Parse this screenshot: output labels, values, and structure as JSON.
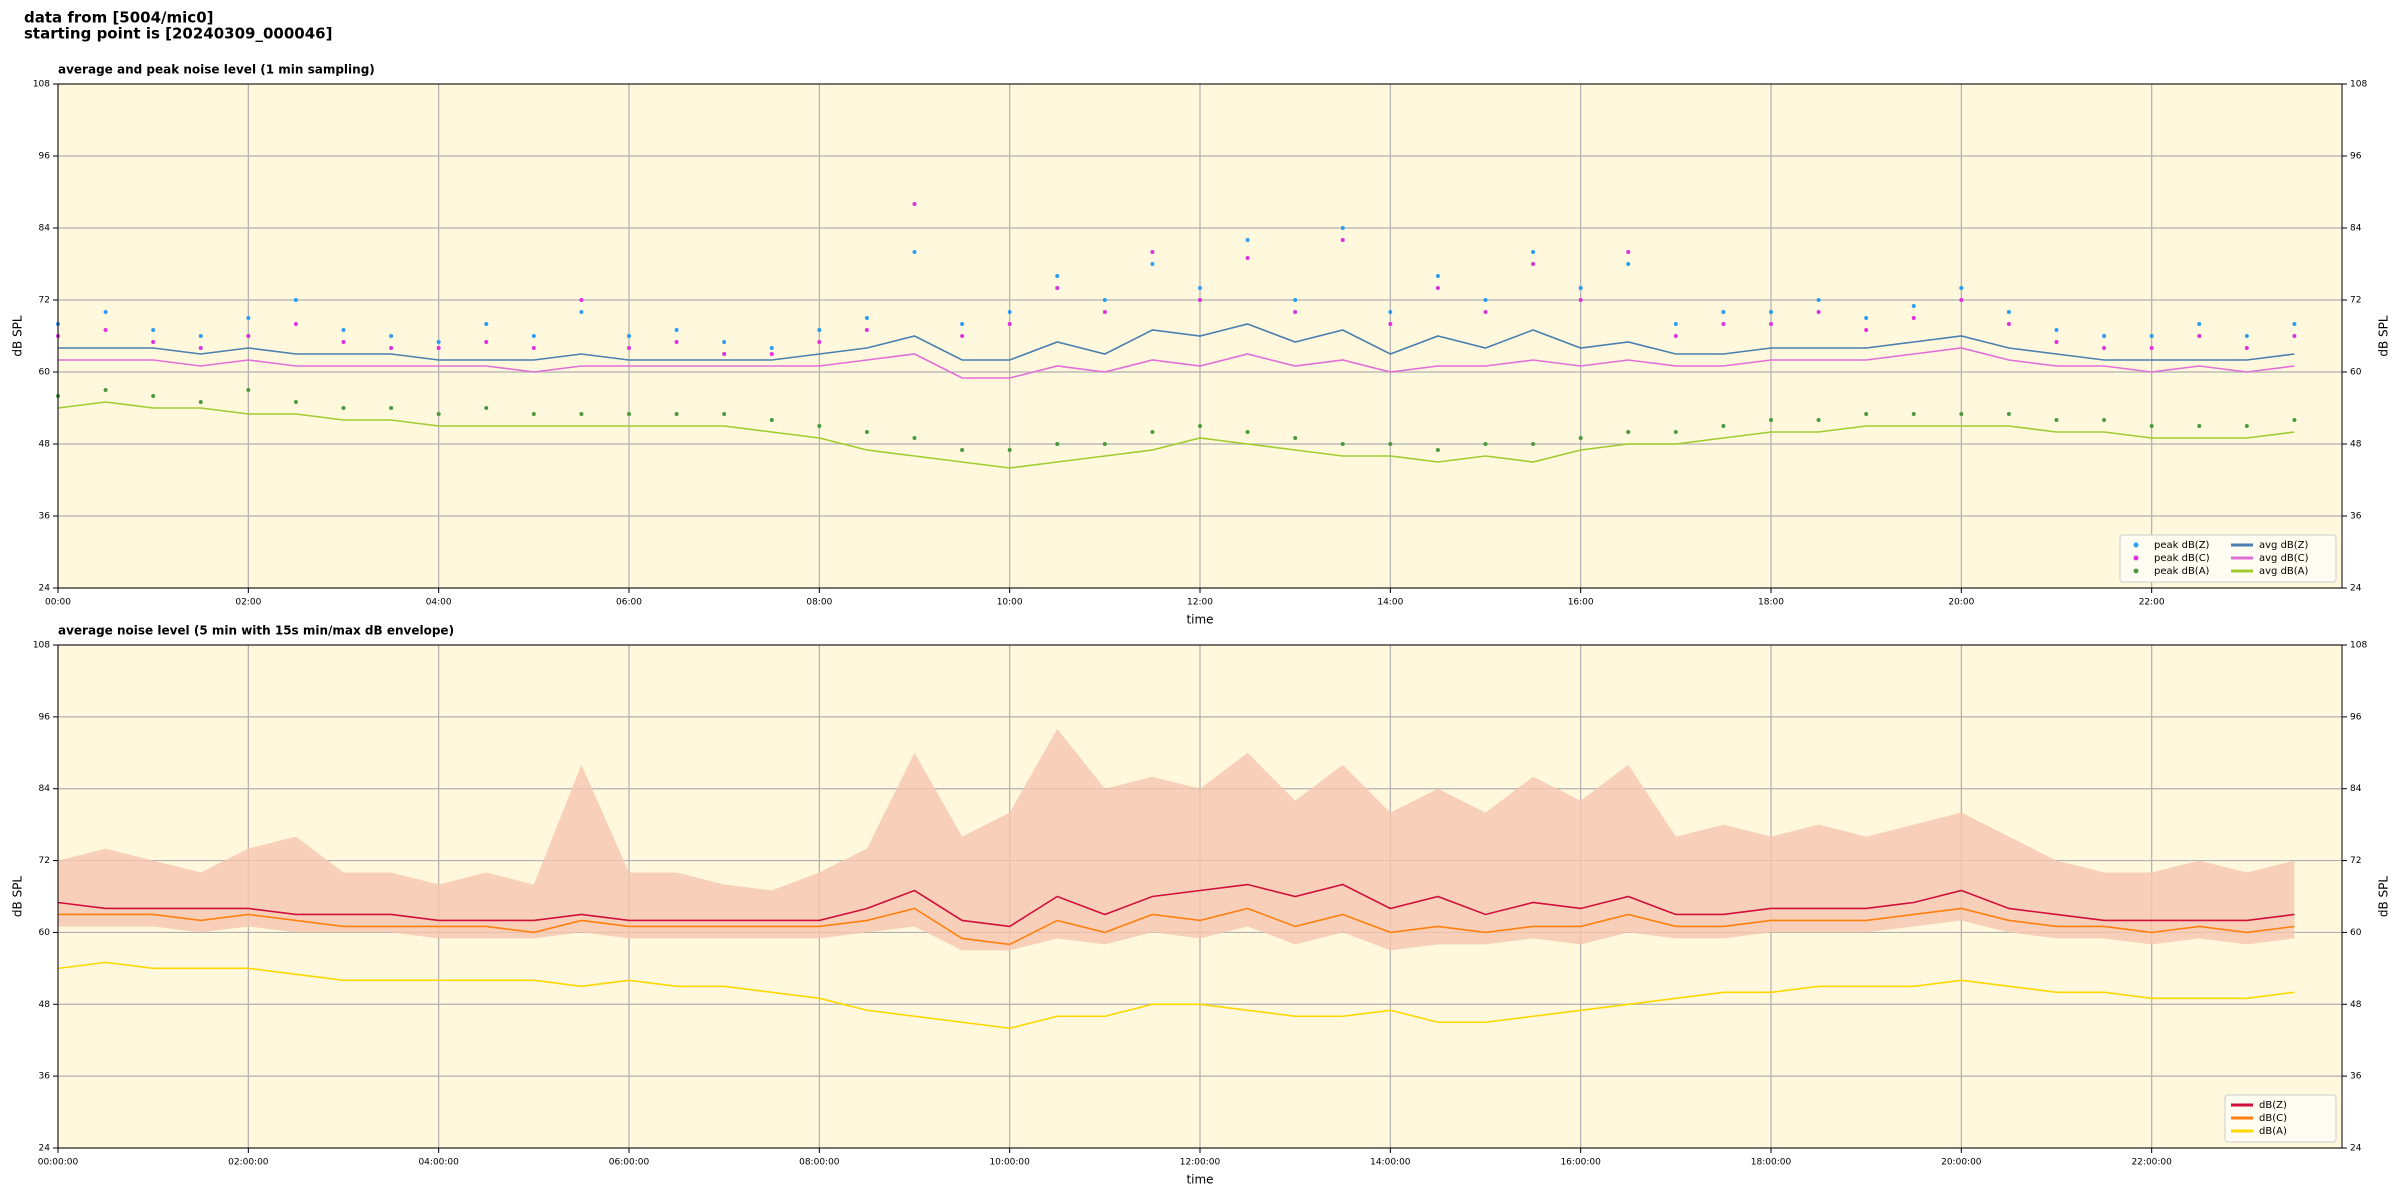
{
  "header": {
    "line1": "data from [5004/mic0]",
    "line2": "starting point is [20240309_000046]"
  },
  "chart_data": [
    {
      "type": "line",
      "title": "average and peak noise level (1 min sampling)",
      "x_label": "time",
      "y_label": "dB SPL",
      "x": [
        0,
        0.5,
        1,
        1.5,
        2,
        2.5,
        3,
        3.5,
        4,
        4.5,
        5,
        5.5,
        6,
        6.5,
        7,
        7.5,
        8,
        8.5,
        9,
        9.5,
        10,
        10.5,
        11,
        11.5,
        12,
        12.5,
        13,
        13.5,
        14,
        14.5,
        15,
        15.5,
        16,
        16.5,
        17,
        17.5,
        18,
        18.5,
        19,
        19.5,
        20,
        20.5,
        21,
        21.5,
        22,
        22.5,
        23,
        23.5
      ],
      "xlim": [
        0,
        24
      ],
      "xticks": [
        {
          "value": 0,
          "label": "00:00"
        },
        {
          "value": 2,
          "label": "02:00"
        },
        {
          "value": 4,
          "label": "04:00"
        },
        {
          "value": 6,
          "label": "06:00"
        },
        {
          "value": 8,
          "label": "08:00"
        },
        {
          "value": 10,
          "label": "10:00"
        },
        {
          "value": 12,
          "label": "12:00"
        },
        {
          "value": 14,
          "label": "14:00"
        },
        {
          "value": 16,
          "label": "16:00"
        },
        {
          "value": 18,
          "label": "18:00"
        },
        {
          "value": 20,
          "label": "20:00"
        },
        {
          "value": 22,
          "label": "22:00"
        }
      ],
      "ylim": [
        24,
        108
      ],
      "yticks": [
        24,
        36,
        48,
        60,
        72,
        84,
        96,
        108
      ],
      "grid": true,
      "legend": "lower right",
      "background": "#fff8dc",
      "series": [
        {
          "name": "peak dB(Z)",
          "mark": "scatter",
          "color": "#2a9df4",
          "values": [
            68,
            70,
            67,
            66,
            69,
            72,
            67,
            66,
            65,
            68,
            66,
            70,
            66,
            67,
            65,
            64,
            67,
            69,
            80,
            68,
            70,
            76,
            72,
            78,
            74,
            82,
            72,
            84,
            70,
            76,
            72,
            80,
            74,
            78,
            68,
            70,
            70,
            72,
            69,
            71,
            74,
            70,
            67,
            66,
            66,
            68,
            66,
            68
          ]
        },
        {
          "name": "peak dB(C)",
          "mark": "scatter",
          "color": "#e030e0",
          "values": [
            66,
            67,
            65,
            64,
            66,
            68,
            65,
            64,
            64,
            65,
            64,
            72,
            64,
            65,
            63,
            63,
            65,
            67,
            88,
            66,
            68,
            74,
            70,
            80,
            72,
            79,
            70,
            82,
            68,
            74,
            70,
            78,
            72,
            80,
            66,
            68,
            68,
            70,
            67,
            69,
            72,
            68,
            65,
            64,
            64,
            66,
            64,
            66
          ]
        },
        {
          "name": "peak dB(A)",
          "mark": "scatter",
          "color": "#4a9a40",
          "values": [
            56,
            57,
            56,
            55,
            57,
            55,
            54,
            54,
            53,
            54,
            53,
            53,
            53,
            53,
            53,
            52,
            51,
            50,
            49,
            47,
            47,
            48,
            48,
            50,
            51,
            50,
            49,
            48,
            48,
            47,
            48,
            48,
            49,
            50,
            50,
            51,
            52,
            52,
            53,
            53,
            53,
            53,
            52,
            52,
            51,
            51,
            51,
            52
          ]
        },
        {
          "name": "avg dB(Z)",
          "mark": "line",
          "color": "#4a7fb0",
          "values": [
            64,
            64,
            64,
            63,
            64,
            63,
            63,
            63,
            62,
            62,
            62,
            63,
            62,
            62,
            62,
            62,
            63,
            64,
            66,
            62,
            62,
            65,
            63,
            67,
            66,
            68,
            65,
            67,
            63,
            66,
            64,
            67,
            64,
            65,
            63,
            63,
            64,
            64,
            64,
            65,
            66,
            64,
            63,
            62,
            62,
            62,
            62,
            63
          ]
        },
        {
          "name": "avg dB(C)",
          "mark": "line",
          "color": "#e070d8",
          "values": [
            62,
            62,
            62,
            61,
            62,
            61,
            61,
            61,
            61,
            61,
            60,
            61,
            61,
            61,
            61,
            61,
            61,
            62,
            63,
            59,
            59,
            61,
            60,
            62,
            61,
            63,
            61,
            62,
            60,
            61,
            61,
            62,
            61,
            62,
            61,
            61,
            62,
            62,
            62,
            63,
            64,
            62,
            61,
            61,
            60,
            61,
            60,
            61
          ]
        },
        {
          "name": "avg dB(A)",
          "mark": "line",
          "color": "#a0cc30",
          "values": [
            54,
            55,
            54,
            54,
            53,
            53,
            52,
            52,
            51,
            51,
            51,
            51,
            51,
            51,
            51,
            50,
            49,
            47,
            46,
            45,
            44,
            45,
            46,
            47,
            49,
            48,
            47,
            46,
            46,
            45,
            46,
            45,
            47,
            48,
            48,
            49,
            50,
            50,
            51,
            51,
            51,
            51,
            50,
            50,
            49,
            49,
            49,
            50
          ]
        }
      ]
    },
    {
      "type": "line",
      "title": "average noise level (5 min with 15s min/max dB envelope)",
      "x_label": "time",
      "y_label": "dB SPL",
      "x": [
        0,
        0.5,
        1,
        1.5,
        2,
        2.5,
        3,
        3.5,
        4,
        4.5,
        5,
        5.5,
        6,
        6.5,
        7,
        7.5,
        8,
        8.5,
        9,
        9.5,
        10,
        10.5,
        11,
        11.5,
        12,
        12.5,
        13,
        13.5,
        14,
        14.5,
        15,
        15.5,
        16,
        16.5,
        17,
        17.5,
        18,
        18.5,
        19,
        19.5,
        20,
        20.5,
        21,
        21.5,
        22,
        22.5,
        23,
        23.5
      ],
      "xlim": [
        0,
        24
      ],
      "xticks": [
        {
          "value": 0,
          "label": "00:00:00"
        },
        {
          "value": 2,
          "label": "02:00:00"
        },
        {
          "value": 4,
          "label": "04:00:00"
        },
        {
          "value": 6,
          "label": "06:00:00"
        },
        {
          "value": 8,
          "label": "08:00:00"
        },
        {
          "value": 10,
          "label": "10:00:00"
        },
        {
          "value": 12,
          "label": "12:00:00"
        },
        {
          "value": 14,
          "label": "14:00:00"
        },
        {
          "value": 16,
          "label": "16:00:00"
        },
        {
          "value": 18,
          "label": "18:00:00"
        },
        {
          "value": 20,
          "label": "20:00:00"
        },
        {
          "value": 22,
          "label": "22:00:00"
        }
      ],
      "ylim": [
        24,
        108
      ],
      "yticks": [
        24,
        36,
        48,
        60,
        72,
        84,
        96,
        108
      ],
      "grid": true,
      "legend": "lower right",
      "background": "#fff8dc",
      "envelope": {
        "color": "#f6c6b0",
        "lower": [
          61,
          61,
          61,
          60,
          61,
          60,
          60,
          60,
          59,
          59,
          59,
          60,
          59,
          59,
          59,
          59,
          59,
          60,
          61,
          57,
          57,
          59,
          58,
          60,
          59,
          61,
          58,
          60,
          57,
          58,
          58,
          59,
          58,
          60,
          59,
          59,
          60,
          60,
          60,
          61,
          62,
          60,
          59,
          59,
          58,
          59,
          58,
          59
        ],
        "upper": [
          72,
          74,
          72,
          70,
          74,
          76,
          70,
          70,
          68,
          70,
          68,
          88,
          70,
          70,
          68,
          67,
          70,
          74,
          90,
          76,
          80,
          94,
          84,
          86,
          84,
          90,
          82,
          88,
          80,
          84,
          80,
          86,
          82,
          88,
          76,
          78,
          76,
          78,
          76,
          78,
          80,
          76,
          72,
          70,
          70,
          72,
          70,
          72
        ]
      },
      "series": [
        {
          "name": "dB(Z)",
          "mark": "line",
          "color": "#d0103a",
          "values": [
            65,
            64,
            64,
            64,
            64,
            63,
            63,
            63,
            62,
            62,
            62,
            63,
            62,
            62,
            62,
            62,
            62,
            64,
            67,
            62,
            61,
            66,
            63,
            66,
            67,
            68,
            66,
            68,
            64,
            66,
            63,
            65,
            64,
            66,
            63,
            63,
            64,
            64,
            64,
            65,
            67,
            64,
            63,
            62,
            62,
            62,
            62,
            63
          ]
        },
        {
          "name": "dB(C)",
          "mark": "line",
          "color": "#ff8010",
          "values": [
            63,
            63,
            63,
            62,
            63,
            62,
            61,
            61,
            61,
            61,
            60,
            62,
            61,
            61,
            61,
            61,
            61,
            62,
            64,
            59,
            58,
            62,
            60,
            63,
            62,
            64,
            61,
            63,
            60,
            61,
            60,
            61,
            61,
            63,
            61,
            61,
            62,
            62,
            62,
            63,
            64,
            62,
            61,
            61,
            60,
            61,
            60,
            61
          ]
        },
        {
          "name": "dB(A)",
          "mark": "line",
          "color": "#ffd700",
          "values": [
            54,
            55,
            54,
            54,
            54,
            53,
            52,
            52,
            52,
            52,
            52,
            51,
            52,
            51,
            51,
            50,
            49,
            47,
            46,
            45,
            44,
            46,
            46,
            48,
            48,
            47,
            46,
            46,
            47,
            45,
            45,
            46,
            47,
            48,
            49,
            50,
            50,
            51,
            51,
            51,
            52,
            51,
            50,
            50,
            49,
            49,
            49,
            50
          ]
        }
      ]
    }
  ]
}
